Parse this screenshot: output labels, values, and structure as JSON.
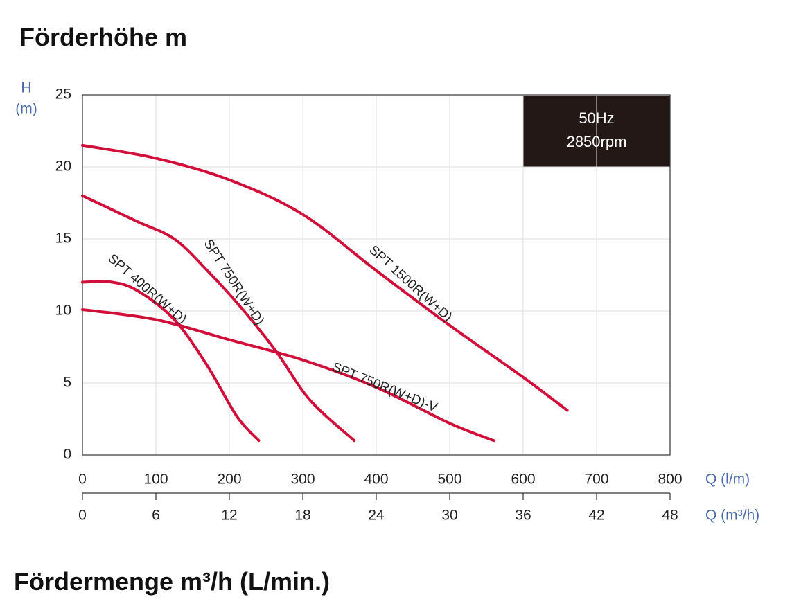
{
  "chart_data": {
    "type": "line",
    "title": "Förderhöhe m",
    "subtitle": "Fördermenge m³/h (L/min.)",
    "ylabel_lines": [
      "H",
      "(m)"
    ],
    "xlabel": "Q (l/m)",
    "x2label": "Q (m³/h)",
    "annotation_lines": [
      "50Hz",
      "2850rpm"
    ],
    "xlim": [
      0,
      800
    ],
    "xticks": [
      0,
      100,
      200,
      300,
      400,
      500,
      600,
      700,
      800
    ],
    "x2lim": [
      0,
      48
    ],
    "x2ticks": [
      0,
      6,
      12,
      18,
      24,
      30,
      36,
      42,
      48
    ],
    "ylim": [
      0,
      25
    ],
    "yticks": [
      0,
      5,
      10,
      15,
      20,
      25
    ],
    "grid": true,
    "series": [
      {
        "name": "SPT 400R(W+D)",
        "color": "#d0103a",
        "x": [
          0,
          40,
          75,
          125,
          170,
          210,
          240
        ],
        "values": [
          12,
          12,
          11.4,
          9.4,
          6.2,
          2.7,
          1
        ]
      },
      {
        "name": "SPT 750R(W+D)",
        "color": "#d0103a",
        "x": [
          0,
          75,
          125,
          170,
          220,
          265,
          310,
          370
        ],
        "values": [
          18,
          16.2,
          15,
          12.8,
          10,
          7.1,
          3.8,
          1
        ]
      },
      {
        "name": "SPT 1500R(W+D)",
        "color": "#d0103a",
        "x": [
          0,
          100,
          200,
          300,
          400,
          500,
          600,
          660
        ],
        "values": [
          21.5,
          20.6,
          19.1,
          16.7,
          12.8,
          9,
          5.4,
          3.1
        ]
      },
      {
        "name": "SPT 750R(W+D)-V",
        "color": "#d0103a",
        "x": [
          0,
          100,
          200,
          300,
          400,
          500,
          560
        ],
        "values": [
          10.1,
          9.4,
          8,
          6.6,
          4.7,
          2.2,
          1
        ]
      }
    ]
  }
}
